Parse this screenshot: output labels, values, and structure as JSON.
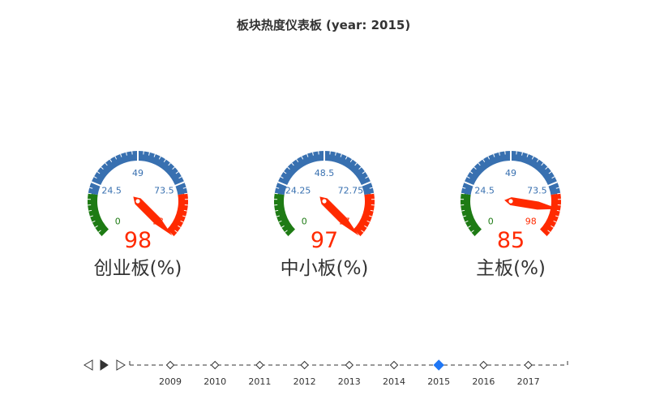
{
  "title": "板块热度仪表板 (year: 2015)",
  "colors": {
    "low": "#1e7b14",
    "mid": "#3870b0",
    "high": "#ff2a00",
    "active": "#1f77f5",
    "text": "#333333"
  },
  "chart_data": {
    "type": "gauge",
    "title": "板块热度仪表板 (year: 2015)",
    "gauges": [
      {
        "name": "创业板(%)",
        "value": 98,
        "min": 0,
        "max": 98,
        "tick_labels": [
          "0",
          "24.5",
          "49",
          "73.5",
          "98"
        ]
      },
      {
        "name": "中小板(%)",
        "value": 97,
        "min": 0,
        "max": 97,
        "tick_labels": [
          "0",
          "24.25",
          "48.5",
          "72.75",
          "97"
        ]
      },
      {
        "name": "主板(%)",
        "value": 85,
        "min": 0,
        "max": 98,
        "tick_labels": [
          "0",
          "24.5",
          "49",
          "73.5",
          "98"
        ]
      }
    ],
    "bands": [
      {
        "from": 0,
        "to": 0.2,
        "color": "low"
      },
      {
        "from": 0.2,
        "to": 0.8,
        "color": "mid"
      },
      {
        "from": 0.8,
        "to": 1.0,
        "color": "high"
      }
    ]
  },
  "timeline": {
    "years": [
      "2009",
      "2010",
      "2011",
      "2012",
      "2013",
      "2014",
      "2015",
      "2016",
      "2017"
    ],
    "current": "2015",
    "controls": {
      "prev": "prev-icon",
      "play": "play-icon",
      "next": "next-icon"
    }
  }
}
